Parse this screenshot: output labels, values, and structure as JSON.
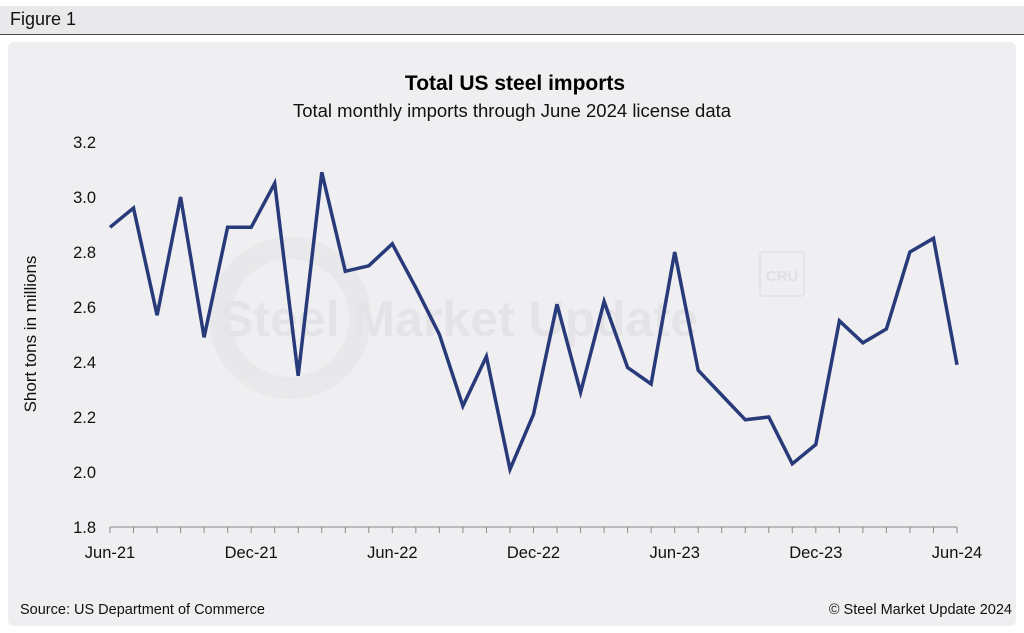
{
  "figure_label": "Figure 1",
  "footer": {
    "source": "Source: US Department of Commerce",
    "copyright": "© Steel Market Update 2024"
  },
  "watermark": {
    "text": "Steel Market Update",
    "badge": "CRU"
  },
  "colors": {
    "line": "#283a7a",
    "panel": "#efeff1",
    "header": "#e9e9ec"
  },
  "chart_data": {
    "type": "line",
    "title": "Total US steel imports",
    "subtitle": "Total monthly imports through June 2024 license data",
    "ylabel": "Short tons in millions",
    "xlabel": "",
    "ylim": [
      1.8,
      3.2
    ],
    "yticks": [
      "1.8",
      "2.0",
      "2.2",
      "2.4",
      "2.6",
      "2.8",
      "3.0",
      "3.2"
    ],
    "xtick_labels": [
      "Jun-21",
      "Dec-21",
      "Jun-22",
      "Dec-22",
      "Jun-23",
      "Dec-23",
      "Jun-24"
    ],
    "grid": false,
    "legend": "none",
    "x": [
      "Jun-21",
      "Jul-21",
      "Aug-21",
      "Sep-21",
      "Oct-21",
      "Nov-21",
      "Dec-21",
      "Jan-22",
      "Feb-22",
      "Mar-22",
      "Apr-22",
      "May-22",
      "Jun-22",
      "Jul-22",
      "Aug-22",
      "Sep-22",
      "Oct-22",
      "Nov-22",
      "Dec-22",
      "Jan-23",
      "Feb-23",
      "Mar-23",
      "Apr-23",
      "May-23",
      "Jun-23",
      "Jul-23",
      "Aug-23",
      "Sep-23",
      "Oct-23",
      "Nov-23",
      "Dec-23",
      "Jan-24",
      "Feb-24",
      "Mar-24",
      "Apr-24",
      "May-24",
      "Jun-24"
    ],
    "series": [
      {
        "values": [
          2.89,
          2.96,
          2.57,
          3.0,
          2.49,
          2.89,
          2.89,
          3.05,
          2.35,
          3.09,
          2.73,
          2.75,
          2.83,
          2.67,
          2.5,
          2.24,
          2.42,
          2.01,
          2.21,
          2.61,
          2.29,
          2.62,
          2.38,
          2.32,
          2.8,
          2.37,
          2.28,
          2.19,
          2.2,
          2.03,
          2.1,
          2.55,
          2.47,
          2.52,
          2.8,
          2.85,
          2.39
        ]
      }
    ]
  }
}
